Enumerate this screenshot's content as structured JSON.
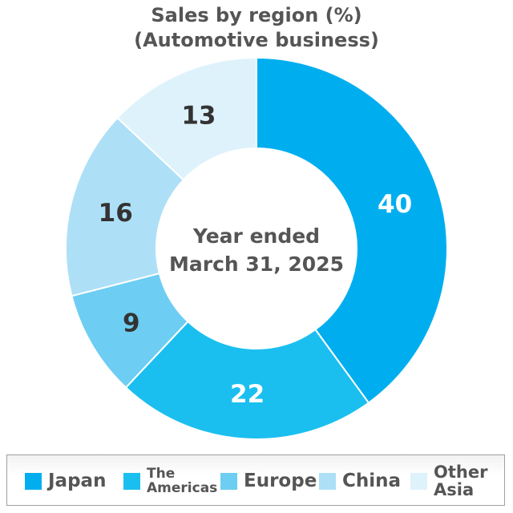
{
  "chart_data": {
    "type": "pie",
    "variant": "donut",
    "title_lines": [
      "Sales by region (%)",
      "(Automotive business)"
    ],
    "center_label_lines": [
      "Year ended",
      "March 31, 2025"
    ],
    "categories": [
      "Japan",
      "The Americas",
      "Europe",
      "China",
      "Other Asia"
    ],
    "values": [
      40,
      22,
      9,
      16,
      13
    ],
    "colors": [
      "#00aeef",
      "#1abfef",
      "#6dcdf2",
      "#ade0f7",
      "#def2fb"
    ],
    "label_colors": [
      "#ffffff",
      "#ffffff",
      "#333333",
      "#333333",
      "#333333"
    ],
    "legend": {
      "placement": "bottom",
      "items": [
        {
          "label": "Japan"
        },
        {
          "label": "The\nAmericas"
        },
        {
          "label": "Europe"
        },
        {
          "label": "China"
        },
        {
          "label": "Other\nAsia"
        }
      ]
    }
  }
}
